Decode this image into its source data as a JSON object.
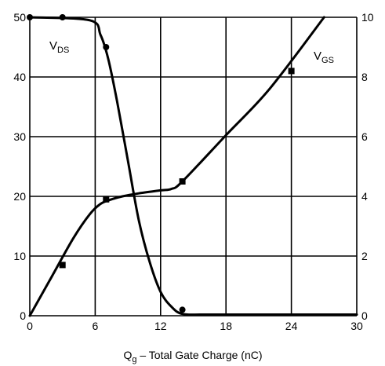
{
  "chart_data": {
    "type": "line",
    "title": "",
    "xlabel": {
      "main": "Q",
      "sub": "g",
      "rest": " – Total Gate Charge (nC)"
    },
    "ylabel_left": "",
    "ylabel_right": "",
    "x_ticks": [
      "0",
      "6",
      "12",
      "18",
      "24",
      "30"
    ],
    "x_tick_values": [
      0,
      6,
      12,
      18,
      24,
      30
    ],
    "y_left_ticks": [
      "0",
      "10",
      "20",
      "30",
      "40",
      "50"
    ],
    "y_left_tick_values": [
      0,
      10,
      20,
      30,
      40,
      50
    ],
    "y_right_ticks": [
      "0",
      "2",
      "4",
      "6",
      "8",
      "10"
    ],
    "y_right_tick_values": [
      0,
      2,
      4,
      6,
      8,
      10
    ],
    "xlim": [
      0,
      30
    ],
    "ylim_left": [
      0,
      50
    ],
    "ylim_right": [
      0,
      10
    ],
    "grid": true,
    "series": [
      {
        "name": "V_DS",
        "label_main": "V",
        "label_sub": "DS",
        "axis": "left",
        "marker": "circle",
        "color": "#000000",
        "x": [
          0,
          5.5,
          6.5,
          7.2,
          8.0,
          9.0,
          10.0,
          11.0,
          12.0,
          13.0,
          14.0,
          16.0,
          20.0,
          30.0
        ],
        "y": [
          50,
          49.5,
          47.0,
          43.0,
          36.0,
          26.0,
          16.0,
          9.0,
          4.0,
          1.5,
          0.3,
          0.2,
          0.2,
          0.2
        ],
        "markers_x": [
          0,
          3,
          7,
          14
        ],
        "markers_y": [
          50,
          50,
          45,
          1
        ]
      },
      {
        "name": "V_GS",
        "label_main": "V",
        "label_sub": "GS",
        "axis": "right",
        "marker": "square",
        "color": "#000000",
        "x": [
          0,
          2,
          4,
          5.5,
          6.5,
          7.5,
          8.5,
          10.0,
          12.0,
          13.0,
          14.0,
          18.0,
          22.0,
          27.0
        ],
        "y": [
          0,
          1.3,
          2.6,
          3.4,
          3.75,
          3.9,
          4.0,
          4.1,
          4.2,
          4.25,
          4.5,
          6.05,
          7.6,
          10.0
        ],
        "markers_x": [
          3,
          7,
          14,
          24
        ],
        "markers_y": [
          1.7,
          3.9,
          4.5,
          8.2
        ]
      }
    ]
  }
}
